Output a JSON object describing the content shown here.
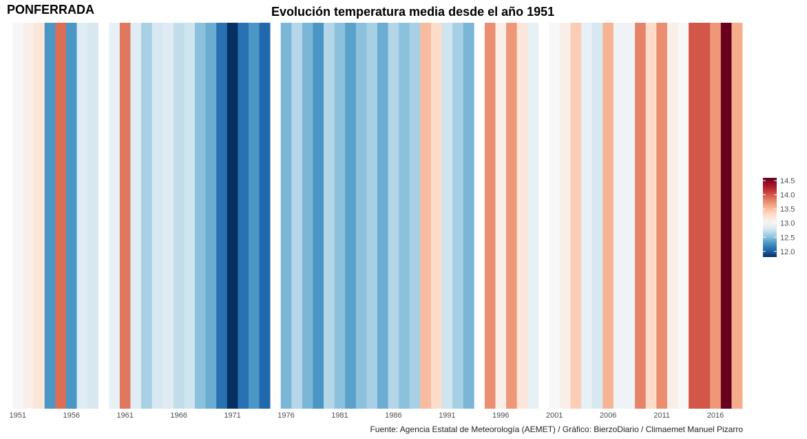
{
  "station": "PONFERRADA",
  "title": "Evolución temperatura media desde el año 1951",
  "caption": "Fuente: Agencia Estatal de Meteorología (AEMET) / Gráfico: BierzoDiario / Climaemet Manuel Pizarro",
  "chart_data": {
    "type": "heatmap",
    "title": "Evolución temperatura media desde el año 1951",
    "xlabel": "",
    "ylabel": "",
    "x_tick_labels": [
      "1951",
      "1956",
      "1961",
      "1966",
      "1971",
      "1976",
      "1981",
      "1986",
      "1991",
      "1996",
      "2001",
      "2006",
      "2011",
      "2016"
    ],
    "years": [
      1951,
      1952,
      1953,
      1954,
      1955,
      1956,
      1957,
      1958,
      1959,
      1960,
      1961,
      1962,
      1963,
      1964,
      1965,
      1966,
      1967,
      1968,
      1969,
      1970,
      1971,
      1972,
      1973,
      1974,
      1975,
      1976,
      1977,
      1978,
      1979,
      1980,
      1981,
      1982,
      1983,
      1984,
      1985,
      1986,
      1987,
      1988,
      1989,
      1990,
      1991,
      1992,
      1993,
      1994,
      1995,
      1996,
      1997,
      1998,
      1999,
      2000,
      2001,
      2002,
      2003,
      2004,
      2005,
      2006,
      2007,
      2008,
      2009,
      2010,
      2011,
      2012,
      2013,
      2014,
      2015,
      2016,
      2017,
      2018
    ],
    "values": [
      13.0,
      13.1,
      13.2,
      12.3,
      13.9,
      12.3,
      12.85,
      12.8,
      null,
      12.9,
      13.85,
      12.85,
      12.6,
      12.8,
      12.85,
      12.7,
      12.75,
      12.5,
      12.4,
      12.1,
      11.8,
      12.1,
      12.3,
      12.05,
      null,
      12.45,
      12.65,
      12.45,
      12.3,
      12.65,
      12.5,
      12.35,
      12.5,
      12.6,
      12.4,
      12.65,
      12.5,
      12.6,
      13.5,
      13.3,
      12.75,
      12.6,
      12.45,
      null,
      13.75,
      13.1,
      13.7,
      13.2,
      12.9,
      null,
      13.0,
      13.1,
      13.4,
      12.9,
      12.8,
      13.55,
      12.95,
      12.95,
      13.8,
      13.3,
      13.75,
      13.1,
      13.0,
      14.0,
      14.0,
      13.7,
      14.6,
      13.6
    ],
    "missing_years": [
      1959,
      1975,
      1994,
      2000
    ],
    "color_scale": {
      "min": 11.8,
      "max": 14.6,
      "midpoint": 13.0,
      "palette": [
        "#053061",
        "#2166ac",
        "#4393c3",
        "#92c5de",
        "#d1e5f0",
        "#f7f7f7",
        "#fddbc7",
        "#f4a582",
        "#d6604d",
        "#b2182b",
        "#67001f"
      ]
    },
    "legend": {
      "position": "right",
      "ticks": [
        12.0,
        12.5,
        13.0,
        13.5,
        14.0,
        14.5
      ]
    }
  }
}
